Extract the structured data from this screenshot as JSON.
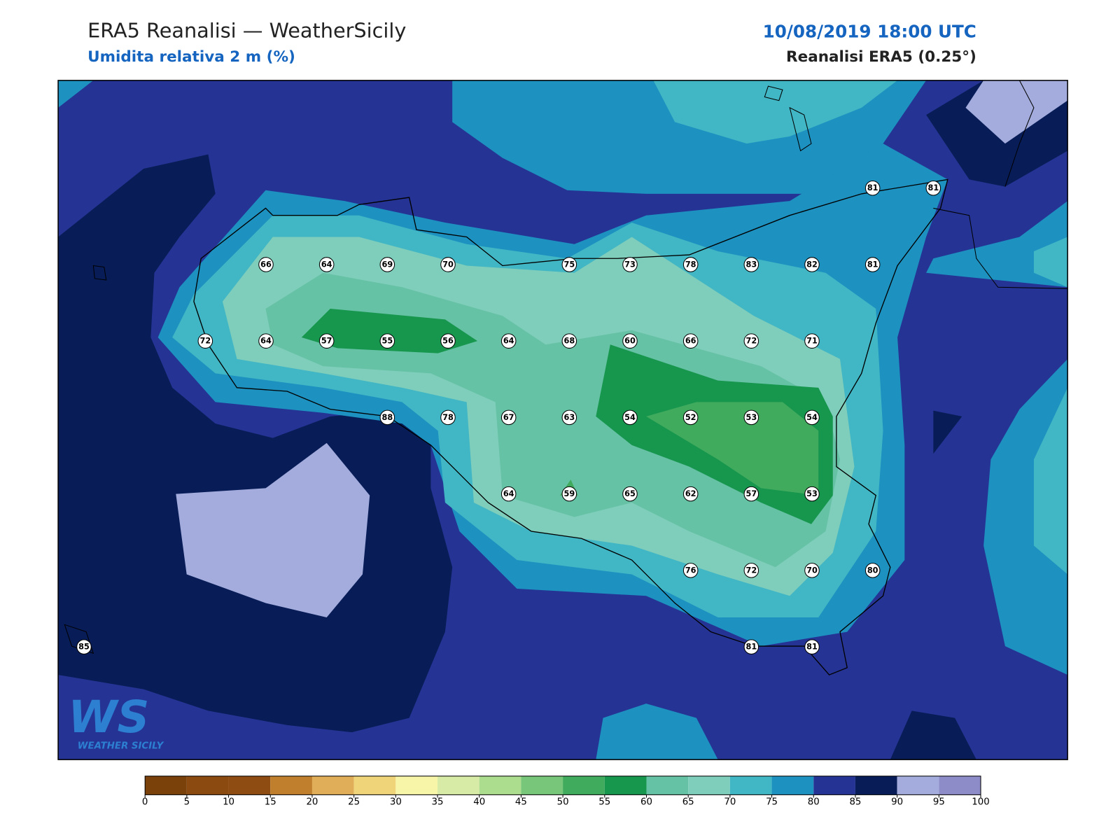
{
  "header": {
    "title": "ERA5 Reanalisi — WeatherSicily",
    "subtitle": "Umidita relativa 2 m (%)",
    "date": "10/08/2019 18:00 UTC",
    "source": "Reanalisi ERA5 (0.25°)"
  },
  "logo": {
    "text": "WS",
    "caption": "WEATHER SICILY"
  },
  "stations": {
    "rows": [
      [
        null,
        null,
        null,
        null,
        null,
        null,
        null,
        null,
        null,
        null,
        null,
        null,
        null,
        81,
        81
      ],
      [
        null,
        null,
        null,
        66,
        64,
        69,
        70,
        null,
        75,
        73,
        78,
        83,
        82,
        81,
        null
      ],
      [
        null,
        null,
        72,
        64,
        57,
        55,
        56,
        64,
        68,
        60,
        66,
        72,
        71,
        null,
        null
      ],
      [
        null,
        null,
        null,
        null,
        null,
        88,
        78,
        67,
        63,
        54,
        52,
        53,
        54,
        null,
        null
      ],
      [
        null,
        null,
        null,
        null,
        null,
        null,
        null,
        64,
        59,
        65,
        62,
        57,
        53,
        null,
        null
      ],
      [
        null,
        null,
        null,
        null,
        null,
        null,
        null,
        null,
        null,
        null,
        76,
        72,
        70,
        80,
        null
      ],
      [
        85,
        null,
        null,
        null,
        null,
        null,
        null,
        null,
        null,
        null,
        null,
        81,
        81,
        null,
        null
      ]
    ]
  },
  "colorbar": {
    "ticks": [
      0,
      5,
      10,
      15,
      20,
      25,
      30,
      35,
      40,
      45,
      50,
      55,
      60,
      65,
      70,
      75,
      80,
      85,
      90,
      95,
      100
    ],
    "colors": [
      "#7a420a",
      "#8b4a10",
      "#8f4c12",
      "#c07f2c",
      "#e0ad58",
      "#f0d47a",
      "#f6f5a8",
      "#d8eba6",
      "#acdd8e",
      "#78c679",
      "#41ab5d",
      "#17964e",
      "#66c2a4",
      "#7fcdbb",
      "#41b6c4",
      "#1d91c0",
      "#253494",
      "#081d58",
      "#a3acdc",
      "#8e8cc8"
    ]
  }
}
